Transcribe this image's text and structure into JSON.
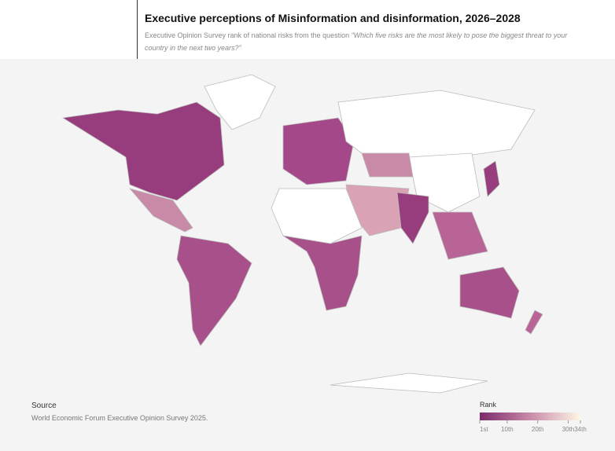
{
  "header": {
    "title": "Executive perceptions of Misinformation and disinformation, 2026–2028",
    "subtitle": "Executive Opinion Survey rank of national risks from the question",
    "subtitle_quote": "“Which five risks are the most likely to pose the biggest threat to your country in the next two years?”"
  },
  "source": {
    "heading": "Source",
    "text": "World Economic Forum Executive Opinion Survey 2025."
  },
  "legend": {
    "title": "Rank",
    "range": [
      1,
      34
    ],
    "ticks": [
      {
        "value": 1,
        "label": "1st"
      },
      {
        "value": 10,
        "label": "10th"
      },
      {
        "value": 20,
        "label": "20th"
      },
      {
        "value": 30,
        "label": "30th"
      },
      {
        "value": 34,
        "label": "34th"
      }
    ]
  }
}
